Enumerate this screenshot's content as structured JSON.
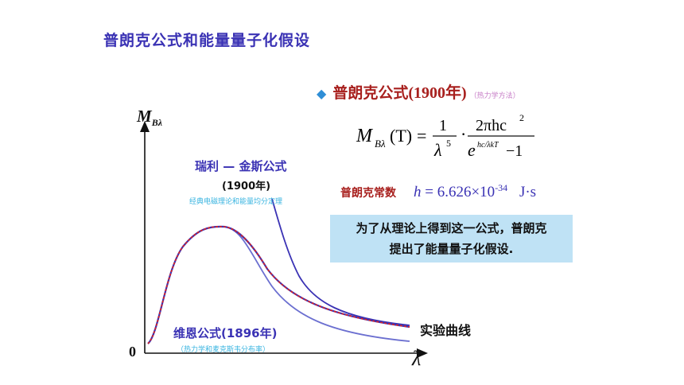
{
  "slide": {
    "title": "普朗克公式和能量量子化假设"
  },
  "planck": {
    "bullet": "普朗克公式",
    "year": "(1900年)",
    "note": "（热力学方法）",
    "formula": {
      "lhs": "M",
      "lhs_sub": "Bλ",
      "lhs_arg": "(T)",
      "eq": "=",
      "frac1_num": "1",
      "frac1_den": "λ",
      "frac1_den_sup": "5",
      "dot": "·",
      "frac2_num": "2πhc",
      "frac2_num_sup": "2",
      "frac2_den": "e",
      "frac2_den_sup": "hc/λkT",
      "frac2_den_tail": " −1"
    }
  },
  "constant": {
    "label": "普朗克常数",
    "symbol": "h",
    "value": "= 6.626×10",
    "exponent": "-34",
    "unit": "J·s"
  },
  "callout": {
    "line1": "为了从理论上得到这一公式，普朗克",
    "line2": "提出了能量量子化假设."
  },
  "graph": {
    "y_axis": "M",
    "y_axis_sub": "Bλ",
    "x_axis": "λ",
    "origin": "0",
    "rayleigh_jeans": {
      "label": "瑞利 — 金斯公式",
      "year": "(1900年)",
      "note": "经典电磁理论和能量均分定理"
    },
    "wien": {
      "label": "维恩公式(1896年)",
      "note": "（热力学和麦克斯韦分布率）"
    },
    "experiment": {
      "label": "实验曲线"
    },
    "colors": {
      "rj": "#3a32b4",
      "wien": "#6b6fd0",
      "experiment": "#dd2222",
      "planck": "#3a32b4",
      "axis": "#111111"
    }
  }
}
